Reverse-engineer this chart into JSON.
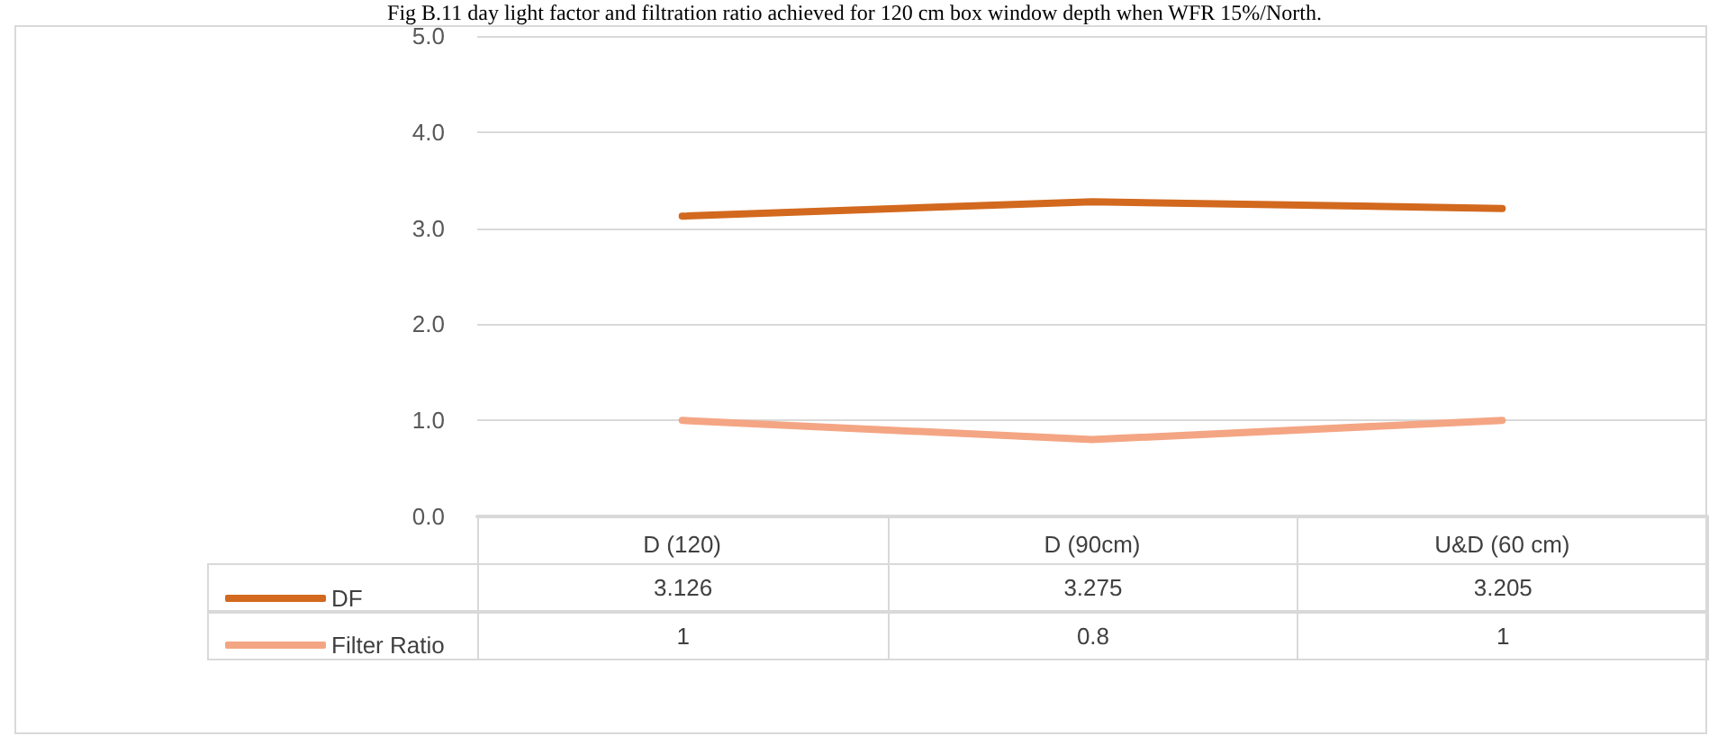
{
  "chart_data": {
    "type": "line",
    "title": "Fig B.11  day light factor and filtration ratio achieved for 120 cm box window depth when WFR 15%/North.",
    "categories": [
      "D (120)",
      "D (90cm)",
      "U&D (60 cm)"
    ],
    "series": [
      {
        "name": "DF",
        "color": "#d2691e",
        "values": [
          3.126,
          3.275,
          3.205
        ]
      },
      {
        "name": "Filter Ratio",
        "color": "#f4a584",
        "values": [
          1,
          0.8,
          1
        ]
      }
    ],
    "ylim": [
      0,
      5
    ],
    "yticks": [
      {
        "value": 0,
        "label": "0.0"
      },
      {
        "value": 1,
        "label": "1.0"
      },
      {
        "value": 2,
        "label": "2.0"
      },
      {
        "value": 3,
        "label": "3.0"
      },
      {
        "value": 4,
        "label": "4.0"
      },
      {
        "value": 5,
        "label": "5.0"
      }
    ],
    "grid": "y",
    "legend": "bottom left",
    "data_labels": true,
    "marker": "none",
    "line_style": "solid"
  }
}
